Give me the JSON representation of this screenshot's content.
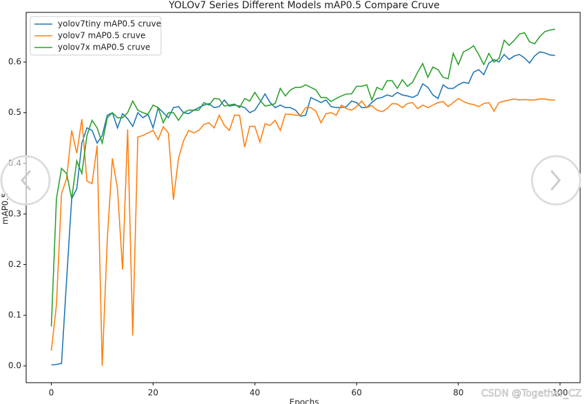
{
  "chart_data": {
    "type": "line",
    "title": "YOLOv7 Series Different Models mAP0.5 Compare Cruve",
    "x_label": "Epochs",
    "y_label": "mAP0.5",
    "watermark": "CSDN @Together_CZ",
    "x": [
      0,
      1,
      2,
      3,
      4,
      5,
      6,
      7,
      8,
      9,
      10,
      11,
      12,
      13,
      14,
      15,
      16,
      17,
      18,
      19,
      20,
      21,
      22,
      23,
      24,
      25,
      26,
      27,
      28,
      29,
      30,
      31,
      32,
      33,
      34,
      35,
      36,
      37,
      38,
      39,
      40,
      41,
      42,
      43,
      44,
      45,
      46,
      47,
      48,
      49,
      50,
      51,
      52,
      53,
      54,
      55,
      56,
      57,
      58,
      59,
      60,
      61,
      62,
      63,
      64,
      65,
      66,
      67,
      68,
      69,
      70,
      71,
      72,
      73,
      74,
      75,
      76,
      77,
      78,
      79,
      80,
      81,
      82,
      83,
      84,
      85,
      86,
      87,
      88,
      89,
      90,
      91,
      92,
      93,
      94,
      95,
      96,
      97,
      98,
      99
    ],
    "series": [
      {
        "name": "yolov7tiny mAP0.5 cruve",
        "color": "#1f77b4",
        "values": [
          0.002,
          0.003,
          0.005,
          0.17,
          0.33,
          0.35,
          0.44,
          0.47,
          0.465,
          0.44,
          0.455,
          0.495,
          0.5,
          0.47,
          0.498,
          0.488,
          0.473,
          0.5,
          0.49,
          0.497,
          0.47,
          0.51,
          0.5,
          0.49,
          0.51,
          0.512,
          0.5,
          0.498,
          0.505,
          0.51,
          0.515,
          0.518,
          0.51,
          0.512,
          0.525,
          0.513,
          0.515,
          0.513,
          0.51,
          0.5,
          0.505,
          0.52,
          0.537,
          0.52,
          0.51,
          0.515,
          0.51,
          0.51,
          0.505,
          0.493,
          0.495,
          0.53,
          0.525,
          0.52,
          0.525,
          0.512,
          0.51,
          0.51,
          0.512,
          0.523,
          0.52,
          0.51,
          0.51,
          0.52,
          0.528,
          0.53,
          0.535,
          0.532,
          0.54,
          0.535,
          0.533,
          0.53,
          0.535,
          0.557,
          0.55,
          0.535,
          0.528,
          0.555,
          0.548,
          0.548,
          0.555,
          0.56,
          0.558,
          0.58,
          0.585,
          0.575,
          0.598,
          0.605,
          0.6,
          0.615,
          0.605,
          0.612,
          0.615,
          0.608,
          0.598,
          0.612,
          0.62,
          0.618,
          0.614,
          0.613
        ]
      },
      {
        "name": "yolov7 mAP0.5 cruve",
        "color": "#ff7f0e",
        "values": [
          0.03,
          0.12,
          0.34,
          0.37,
          0.465,
          0.42,
          0.487,
          0.365,
          0.36,
          0.435,
          0.0,
          0.25,
          0.41,
          0.35,
          0.19,
          0.467,
          0.06,
          0.452,
          0.455,
          0.46,
          0.465,
          0.447,
          0.472,
          0.46,
          0.328,
          0.41,
          0.445,
          0.465,
          0.46,
          0.465,
          0.477,
          0.48,
          0.47,
          0.495,
          0.475,
          0.465,
          0.495,
          0.495,
          0.432,
          0.473,
          0.473,
          0.442,
          0.478,
          0.475,
          0.485,
          0.465,
          0.497,
          0.497,
          0.495,
          0.495,
          0.51,
          0.51,
          0.503,
          0.48,
          0.498,
          0.5,
          0.495,
          0.515,
          0.508,
          0.505,
          0.512,
          0.523,
          0.51,
          0.514,
          0.505,
          0.502,
          0.508,
          0.518,
          0.517,
          0.51,
          0.518,
          0.52,
          0.508,
          0.515,
          0.51,
          0.515,
          0.52,
          0.522,
          0.512,
          0.52,
          0.528,
          0.522,
          0.518,
          0.516,
          0.512,
          0.518,
          0.52,
          0.503,
          0.52,
          0.523,
          0.525,
          0.527,
          0.525,
          0.526,
          0.525,
          0.525,
          0.527,
          0.527,
          0.525,
          0.525
        ]
      },
      {
        "name": "yolov7x mAP0.5 cruve",
        "color": "#2ca02c",
        "values": [
          0.078,
          0.33,
          0.39,
          0.38,
          0.33,
          0.405,
          0.38,
          0.455,
          0.485,
          0.47,
          0.44,
          0.49,
          0.5,
          0.49,
          0.49,
          0.5,
          0.523,
          0.505,
          0.5,
          0.497,
          0.515,
          0.51,
          0.48,
          0.5,
          0.5,
          0.485,
          0.5,
          0.505,
          0.505,
          0.505,
          0.52,
          0.515,
          0.528,
          0.527,
          0.513,
          0.515,
          0.517,
          0.51,
          0.528,
          0.523,
          0.54,
          0.525,
          0.513,
          0.515,
          0.518,
          0.548,
          0.533,
          0.545,
          0.55,
          0.55,
          0.555,
          0.55,
          0.545,
          0.53,
          0.53,
          0.522,
          0.528,
          0.533,
          0.537,
          0.537,
          0.552,
          0.552,
          0.555,
          0.525,
          0.55,
          0.545,
          0.563,
          0.563,
          0.548,
          0.565,
          0.552,
          0.56,
          0.58,
          0.597,
          0.57,
          0.59,
          0.585,
          0.57,
          0.567,
          0.617,
          0.595,
          0.62,
          0.625,
          0.632,
          0.615,
          0.595,
          0.617,
          0.6,
          0.607,
          0.643,
          0.633,
          0.643,
          0.655,
          0.658,
          0.64,
          0.636,
          0.65,
          0.66,
          0.663,
          0.665
        ]
      }
    ],
    "xlim": [
      -4.95,
      103.95
    ],
    "ylim": [
      -0.033,
      0.698
    ],
    "xticks": [
      0,
      20,
      40,
      60,
      80,
      100
    ],
    "yticks": [
      {
        "value": 0,
        "label": "0.0"
      },
      0.1,
      0.2,
      0.3,
      0.4,
      0.5,
      0.6
    ],
    "grid": false,
    "legend": "upper-left"
  }
}
